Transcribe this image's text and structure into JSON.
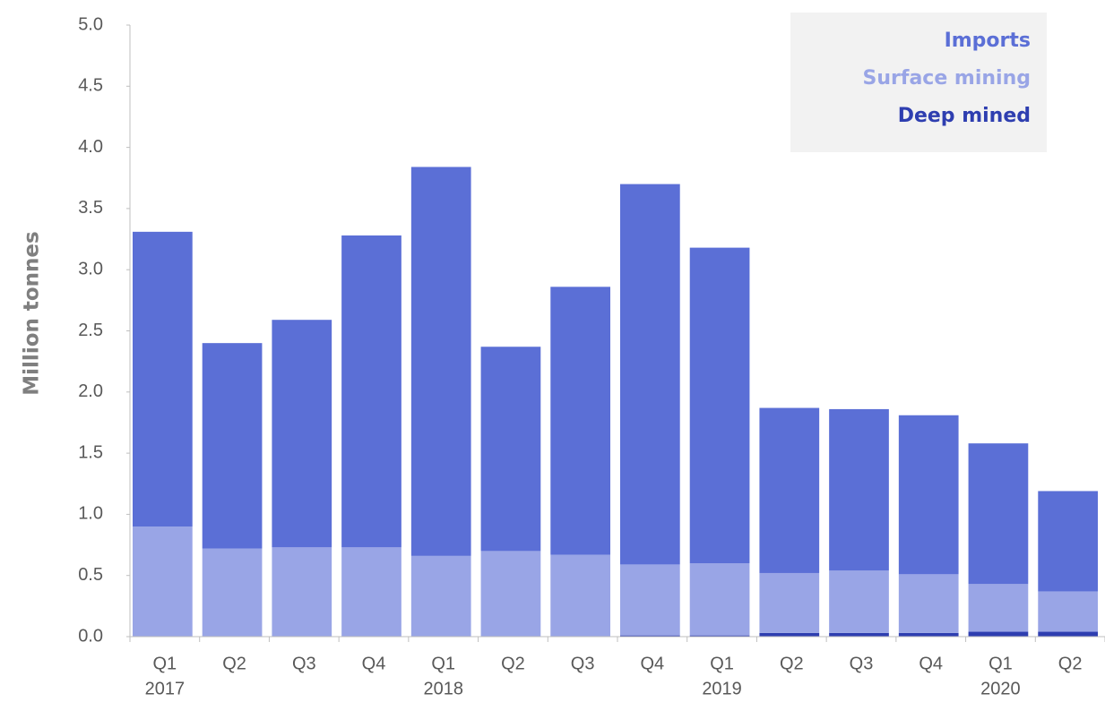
{
  "chart_data": {
    "type": "stacked_bar",
    "y_label": "Million tonnes",
    "categories": [
      "Q1",
      "Q2",
      "Q3",
      "Q4",
      "Q1",
      "Q2",
      "Q3",
      "Q4",
      "Q1",
      "Q2",
      "Q3",
      "Q4",
      "Q1",
      "Q2"
    ],
    "years": [
      "2017",
      null,
      null,
      null,
      "2018",
      null,
      null,
      null,
      "2019",
      null,
      null,
      null,
      "2020",
      null
    ],
    "series": [
      {
        "name": "Imports",
        "color": "#5b6fd6",
        "values": [
          2.41,
          1.68,
          1.86,
          2.55,
          3.18,
          1.67,
          2.19,
          3.11,
          2.58,
          1.35,
          1.32,
          1.3,
          1.15,
          0.82
        ]
      },
      {
        "name": "Surface mining",
        "color": "#99a5e6",
        "values": [
          0.9,
          0.72,
          0.73,
          0.73,
          0.66,
          0.7,
          0.67,
          0.58,
          0.59,
          0.49,
          0.51,
          0.48,
          0.39,
          0.33
        ]
      },
      {
        "name": "Deep mined",
        "color": "#2e3eb0",
        "values": [
          0,
          0,
          0,
          0,
          0,
          0,
          0,
          0.01,
          0.01,
          0.03,
          0.03,
          0.03,
          0.04,
          0.04
        ]
      }
    ],
    "ylim": [
      0,
      5
    ],
    "yticks": [
      {
        "value": 0,
        "label": "0.0"
      },
      0.5,
      {
        "value": 1,
        "label": "1.0"
      },
      1.5,
      {
        "value": 2,
        "label": "2.0"
      },
      2.5,
      {
        "value": 3,
        "label": "3.0"
      },
      3.5,
      {
        "value": 4,
        "label": "4.0"
      },
      4.5,
      {
        "value": 5,
        "label": "5.0"
      }
    ],
    "legend": "top-right"
  }
}
